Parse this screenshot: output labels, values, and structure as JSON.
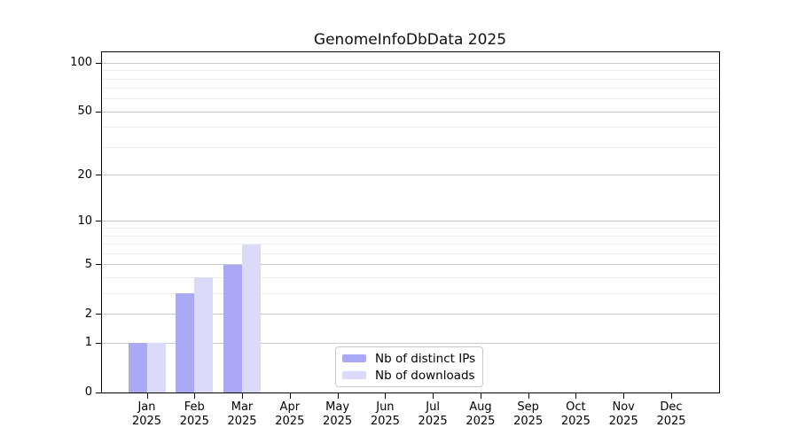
{
  "title": "GenomeInfoDbData 2025",
  "chart_data": {
    "type": "bar",
    "title": "GenomeInfoDbData 2025",
    "categories": [
      "Jan 2025",
      "Feb 2025",
      "Mar 2025",
      "Apr 2025",
      "May 2025",
      "Jun 2025",
      "Jul 2025",
      "Aug 2025",
      "Sep 2025",
      "Oct 2025",
      "Nov 2025",
      "Dec 2025"
    ],
    "x_tick_months": [
      "Jan",
      "Feb",
      "Mar",
      "Apr",
      "May",
      "Jun",
      "Jul",
      "Aug",
      "Sep",
      "Oct",
      "Nov",
      "Dec"
    ],
    "x_tick_year": "2025",
    "series": [
      {
        "name": "Nb of distinct IPs",
        "color": "#a9a9f6",
        "values": [
          1,
          3,
          5,
          0,
          0,
          0,
          0,
          0,
          0,
          0,
          0,
          0
        ]
      },
      {
        "name": "Nb of downloads",
        "color": "#dbdbf9",
        "values": [
          1,
          4,
          7,
          0,
          0,
          0,
          0,
          0,
          0,
          0,
          0,
          0
        ]
      }
    ],
    "xlabel": "",
    "ylabel": "",
    "yscale": "log10(1+x)",
    "ylim": [
      0,
      118
    ],
    "yticks": [
      0,
      1,
      2,
      5,
      10,
      20,
      50,
      100
    ],
    "minor_gridlines": [
      3,
      4,
      6,
      7,
      8,
      9,
      30,
      40,
      60,
      70,
      80,
      90
    ],
    "grid": "horizontal-only",
    "legend_position": "lower center"
  },
  "colors": {
    "background": "#ffffff",
    "axis": "#000000",
    "grid_major": "#c9c9c9",
    "grid_minor": "#ececec",
    "text": "#000000",
    "legend_border": "#c8c8c8",
    "bar_distinct_ips": "#a9a9f6",
    "bar_downloads": "#dbdbf9"
  }
}
